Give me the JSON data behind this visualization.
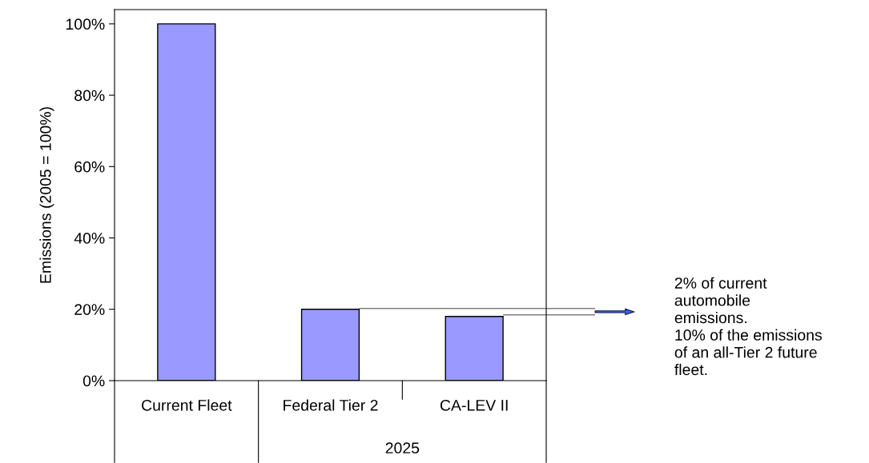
{
  "chart_data": {
    "type": "bar",
    "ylabel": "Emissions (2005 = 100%)",
    "categories": [
      "Current Fleet",
      "Federal Tier 2",
      "CA-LEV II"
    ],
    "values": [
      100,
      20,
      18
    ],
    "color": "#9999ff",
    "ylim": [
      0,
      104
    ],
    "yticks": [
      {
        "value": 0,
        "label": "0%"
      },
      {
        "value": 20,
        "label": "20%"
      },
      {
        "value": 40,
        "label": "40%"
      },
      {
        "value": 60,
        "label": "60%"
      },
      {
        "value": 80,
        "label": "80%"
      },
      {
        "value": 100,
        "label": "100%"
      }
    ],
    "grid": false,
    "legend": false,
    "annotations": [
      "2025",
      "2% of current\nautomobile\nemissions.\n10% of the emissions\nof an all-Tier 2 future\nfleet."
    ]
  }
}
